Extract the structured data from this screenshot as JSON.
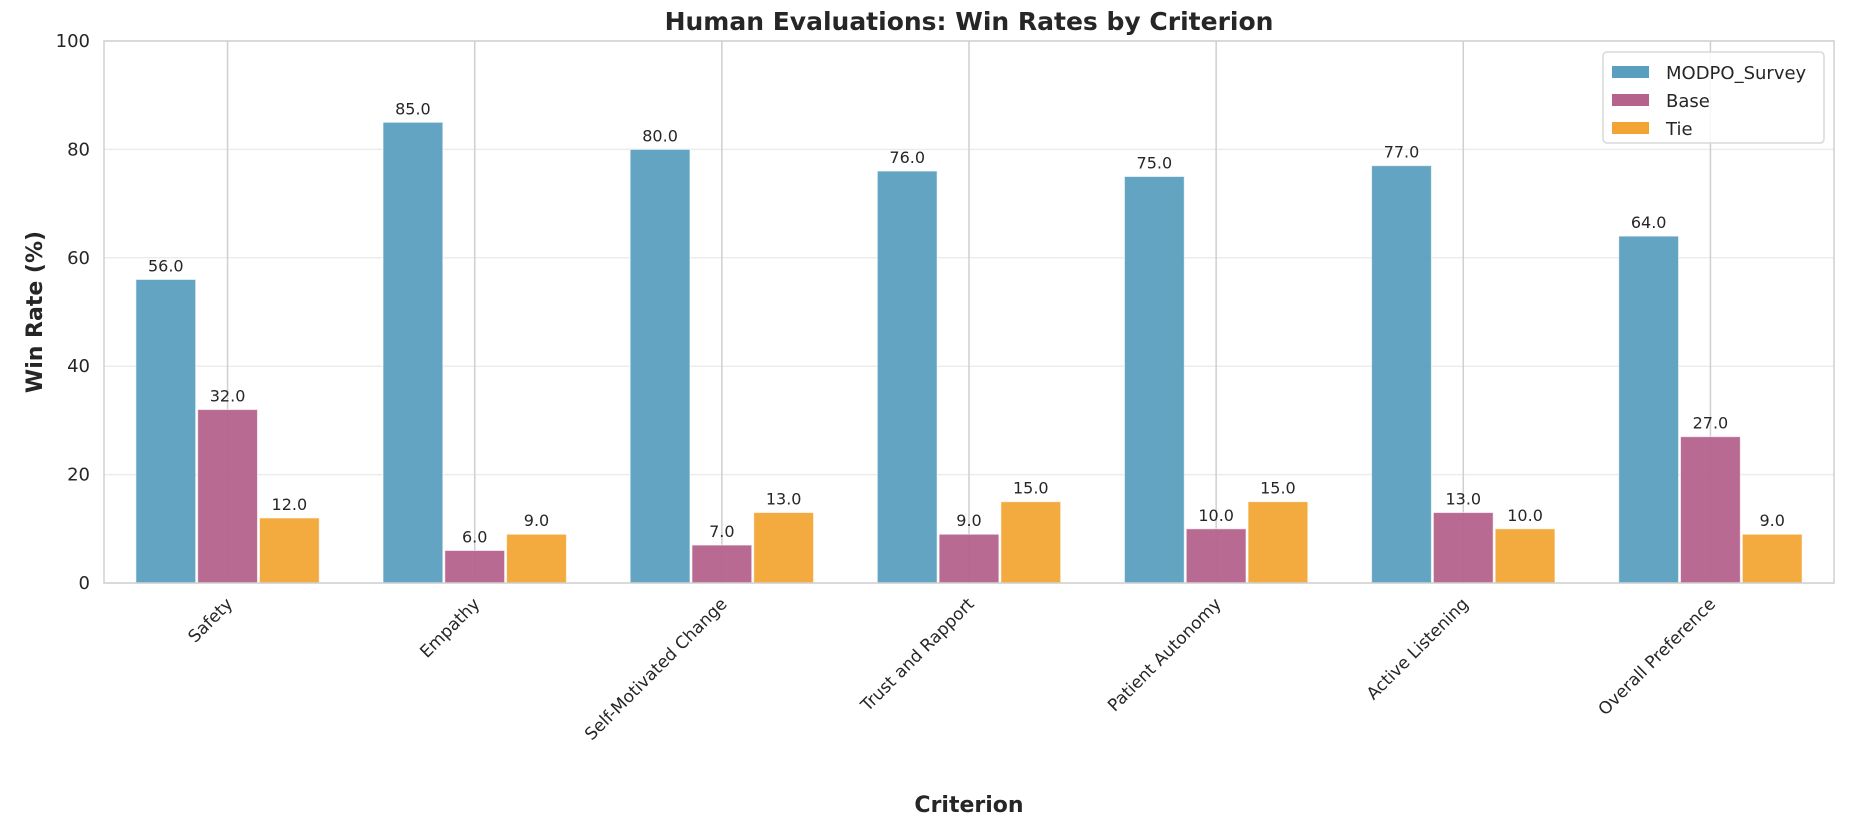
{
  "chart_data": {
    "type": "bar",
    "title": "Human Evaluations: Win Rates by Criterion",
    "xlabel": "Criterion",
    "ylabel": "Win Rate (%)",
    "ylim": [
      0,
      100
    ],
    "yticks": [
      "0",
      "20",
      "40",
      "60",
      "80",
      "100"
    ],
    "grid": true,
    "legend_position": "top-right",
    "categories": [
      "Safety",
      "Empathy",
      "Self-Motivated Change",
      "Trust and Rapport",
      "Patient Autonomy",
      "Active Listening",
      "Overall Preference"
    ],
    "series": [
      {
        "name": "MODPO_Survey",
        "color": "#5a9fbf",
        "values": [
          56.0,
          85.0,
          80.0,
          76.0,
          75.0,
          77.0,
          64.0
        ],
        "labels": [
          "56.0",
          "85.0",
          "80.0",
          "76.0",
          "75.0",
          "77.0",
          "64.0"
        ]
      },
      {
        "name": "Base",
        "color": "#b5628c",
        "values": [
          32.0,
          6.0,
          7.0,
          9.0,
          10.0,
          13.0,
          27.0
        ],
        "labels": [
          "32.0",
          "6.0",
          "7.0",
          "9.0",
          "10.0",
          "13.0",
          "27.0"
        ]
      },
      {
        "name": "Tie",
        "color": "#f2a535",
        "values": [
          12.0,
          9.0,
          13.0,
          15.0,
          15.0,
          10.0,
          9.0
        ],
        "labels": [
          "12.0",
          "9.0",
          "13.0",
          "15.0",
          "15.0",
          "10.0",
          "9.0"
        ]
      }
    ]
  }
}
